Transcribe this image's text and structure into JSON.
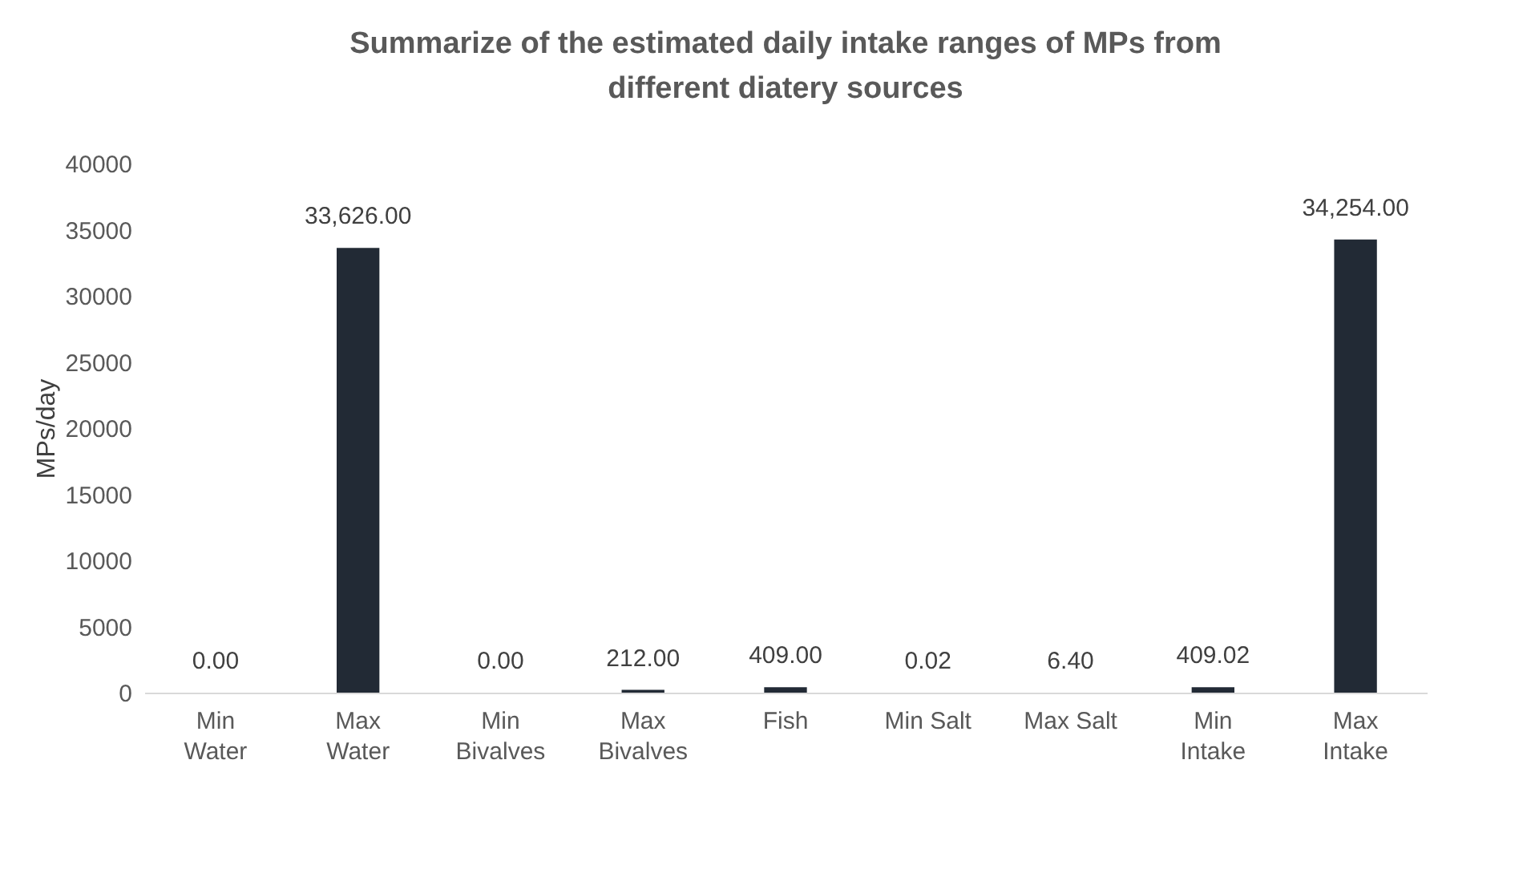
{
  "chart_data": {
    "type": "bar",
    "title": "Summarize of the estimated daily intake ranges of MPs from different diatery sources",
    "ylabel": "MPs/day",
    "categories": [
      "Min Water",
      "Max Water",
      "Min Bivalves",
      "Max Bivalves",
      "Fish",
      "Min Salt",
      "Max Salt",
      "Min Intake",
      "Max Intake"
    ],
    "values": [
      0,
      33626,
      0,
      212,
      409,
      0.02,
      6.4,
      409.02,
      34254
    ],
    "value_labels": [
      "0.00",
      "33,626.00",
      "0.00",
      "212.00",
      "409.00",
      "0.02",
      "6.40",
      "409.02",
      "34,254.00"
    ],
    "color": "#222a35",
    "ylim": [
      0,
      40000
    ],
    "yticks": [
      0,
      5000,
      10000,
      15000,
      20000,
      25000,
      30000,
      35000,
      40000
    ],
    "grid": false
  }
}
